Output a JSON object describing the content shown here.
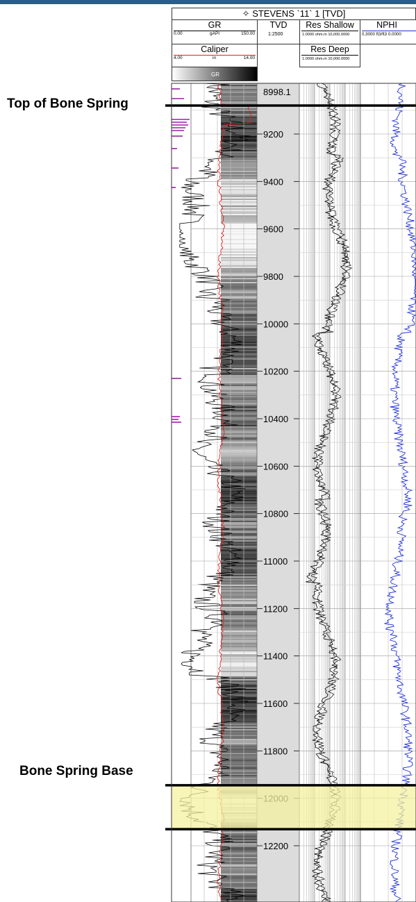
{
  "header": {
    "well_title": "STEVENS `11` 1 [TVD]",
    "gr": {
      "name": "GR",
      "min": "0.00",
      "unit": "gAPI",
      "max": "150.00"
    },
    "caliper": {
      "name": "Caliper",
      "min": "4.00",
      "unit": "in",
      "max": "14.00"
    },
    "gr_fill_label": "GR",
    "tvd": {
      "name": "TVD",
      "scale": "1:2500"
    },
    "res_shallow": {
      "name": "Res Shallow",
      "scale": "1.0000 ohm.m 10,000.0000"
    },
    "res_deep": {
      "name": "Res Deep",
      "scale": "1.0000 ohm.m 10,000.0000"
    },
    "nphi": {
      "name": "NPHI",
      "scale": "0.3000 ft3/ft3 0.0000"
    }
  },
  "tops": {
    "top_label": "Top of Bone Spring",
    "base_label": "Bone Spring Base"
  },
  "colors": {
    "gr_curve": "#000000",
    "caliper_curve": "#e02020",
    "nphi_curve": "#1f2fd6",
    "top_markers": "#9b1fa8",
    "highlight": "#f4f2a0",
    "tvd_track": "#dcdcdc"
  },
  "chart_data": {
    "type": "line",
    "title": "STEVENS `11` 1 [TVD]",
    "y_axis": {
      "label": "TVD",
      "range": [
        8998.1,
        12290
      ],
      "inverted": true,
      "ticks": [
        "8998.1",
        "9200",
        "9400",
        "9600",
        "9800",
        "10000",
        "10200",
        "10400",
        "10600",
        "10800",
        "11000",
        "11200",
        "11400",
        "11600",
        "11800",
        "12000",
        "12200"
      ]
    },
    "tracks": [
      {
        "name": "GR",
        "unit": "gAPI",
        "range": [
          0,
          150
        ]
      },
      {
        "name": "Caliper",
        "unit": "in",
        "range": [
          4,
          14
        ]
      },
      {
        "name": "Res Shallow",
        "unit": "ohm.m",
        "range": [
          1,
          10000
        ],
        "scale": "log"
      },
      {
        "name": "Res Deep",
        "unit": "ohm.m",
        "range": [
          1,
          10000
        ],
        "scale": "log"
      },
      {
        "name": "NPHI",
        "unit": "ft3/ft3",
        "range": [
          0.3,
          0.0
        ]
      }
    ],
    "formation_tops": [
      {
        "name": "Top of Bone Spring",
        "depth": 9080
      },
      {
        "name": "Bone Spring Base",
        "depth": 12130
      }
    ],
    "highlight_interval": [
      11945,
      12130
    ]
  }
}
